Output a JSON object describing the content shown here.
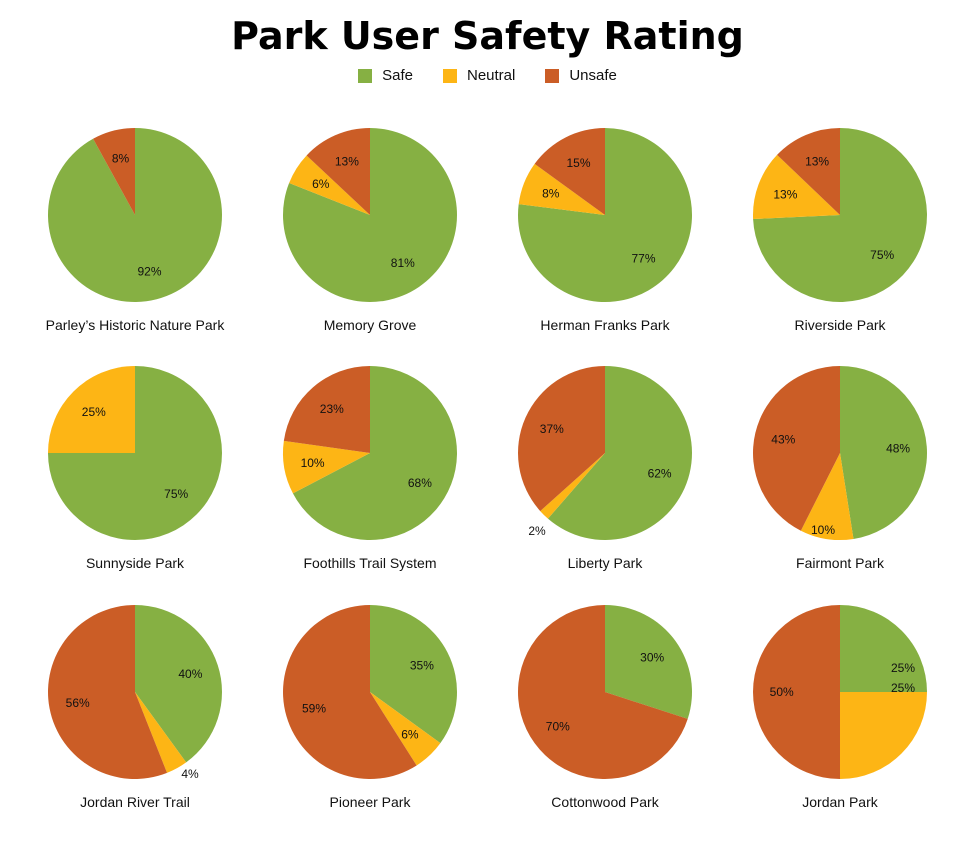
{
  "chart_data": {
    "type": "pie",
    "title": "Park User Safety Rating",
    "legend": [
      {
        "name": "Safe",
        "color": "#86B043"
      },
      {
        "name": "Neutral",
        "color": "#FDB515"
      },
      {
        "name": "Unsafe",
        "color": "#CB5D26"
      }
    ],
    "legend_position": "top-center",
    "pies": [
      {
        "name": "Parley’s Historic Nature Park",
        "values": {
          "safe": 92,
          "neutral": 0,
          "unsafe": 8
        },
        "labels": {
          "safe": "92%",
          "unsafe": "8%"
        }
      },
      {
        "name": "Memory Grove",
        "values": {
          "safe": 81,
          "neutral": 6,
          "unsafe": 13
        },
        "labels": {
          "safe": "81%",
          "neutral": "6%",
          "unsafe": "13%"
        }
      },
      {
        "name": "Herman Franks Park",
        "values": {
          "safe": 77,
          "neutral": 8,
          "unsafe": 15
        },
        "labels": {
          "safe": "77%",
          "neutral": "8%",
          "unsafe": "15%"
        }
      },
      {
        "name": "Riverside Park",
        "values": {
          "safe": 75,
          "neutral": 13,
          "unsafe": 13
        },
        "labels": {
          "safe": "75%",
          "neutral": "13%",
          "unsafe": "13%"
        }
      },
      {
        "name": "Sunnyside Park",
        "values": {
          "safe": 75,
          "neutral": 25,
          "unsafe": 0
        },
        "labels": {
          "safe": "75%",
          "neutral": "25%"
        }
      },
      {
        "name": "Foothills Trail System",
        "values": {
          "safe": 68,
          "neutral": 10,
          "unsafe": 23
        },
        "labels": {
          "safe": "68%",
          "neutral": "10%",
          "unsafe": "23%"
        }
      },
      {
        "name": "Liberty Park",
        "values": {
          "safe": 62,
          "neutral": 2,
          "unsafe": 37
        },
        "labels": {
          "safe": "62%",
          "neutral": "2%",
          "unsafe": "37%"
        }
      },
      {
        "name": "Fairmont Park",
        "values": {
          "safe": 48,
          "neutral": 10,
          "unsafe": 43
        },
        "labels": {
          "safe": "48%",
          "neutral": "10%",
          "unsafe": "43%"
        }
      },
      {
        "name": "Jordan River Trail",
        "values": {
          "safe": 40,
          "neutral": 4,
          "unsafe": 56
        },
        "labels": {
          "safe": "40%",
          "neutral": "4%",
          "unsafe": "56%"
        }
      },
      {
        "name": "Pioneer Park",
        "values": {
          "safe": 35,
          "neutral": 6,
          "unsafe": 59
        },
        "labels": {
          "safe": "35%",
          "neutral": "6%",
          "unsafe": "59%"
        }
      },
      {
        "name": "Cottonwood Park",
        "values": {
          "safe": 30,
          "neutral": 0,
          "unsafe": 70
        },
        "labels": {
          "safe": "30%",
          "unsafe": "70%"
        }
      },
      {
        "name": "Jordan Park",
        "values": {
          "safe": 25,
          "neutral": 25,
          "unsafe": 50
        },
        "labels": {
          "safe": "25%",
          "neutral": "25%",
          "unsafe": "50%"
        }
      }
    ]
  }
}
